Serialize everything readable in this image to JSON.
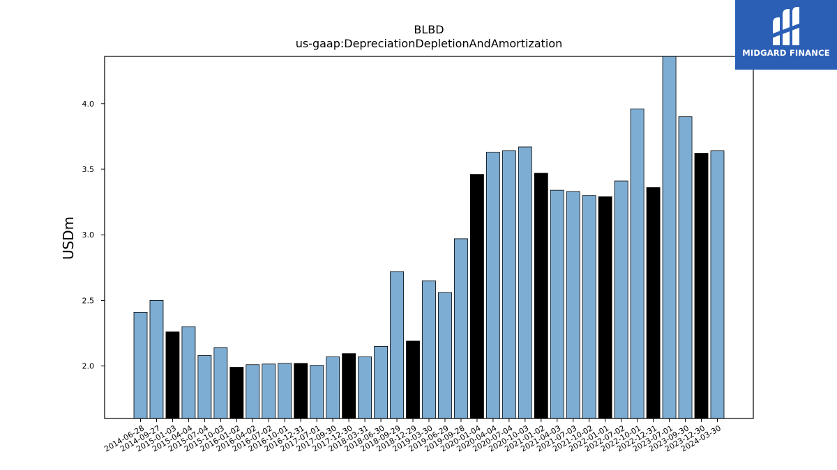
{
  "chart_data": {
    "type": "bar",
    "title": "BLBD",
    "subtitle": "us-gaap:DepreciationDepletionAndAmortization",
    "xlabel": "",
    "ylabel": "USDm",
    "ylim": [
      1.6,
      4.36
    ],
    "yticks": [
      "2.0",
      "2.5",
      "3.0",
      "3.5",
      "4.0"
    ],
    "grid": false,
    "colors": {
      "normal": "#7eadd3",
      "highlight": "#000000",
      "edge": "#000000"
    },
    "categories": [
      "2014-06-28",
      "2014-09-27",
      "2015-01-03",
      "2015-04-04",
      "2015-07-04",
      "2015-10-03",
      "2016-01-02",
      "2016-04-02",
      "2016-07-02",
      "2016-10-01",
      "2016-12-31",
      "2017-07-01",
      "2017-09-30",
      "2017-12-30",
      "2018-03-31",
      "2018-06-30",
      "2018-09-29",
      "2018-12-29",
      "2019-03-30",
      "2019-06-29",
      "2019-09-28",
      "2020-01-04",
      "2020-04-04",
      "2020-07-04",
      "2020-10-03",
      "2021-01-02",
      "2021-04-03",
      "2021-07-03",
      "2021-10-02",
      "2022-01-01",
      "2022-07-02",
      "2022-10-01",
      "2022-12-31",
      "2023-07-01",
      "2023-09-30",
      "2023-12-30",
      "2024-03-30"
    ],
    "values": [
      2.41,
      2.5,
      2.26,
      2.3,
      2.08,
      2.14,
      1.99,
      2.01,
      2.015,
      2.02,
      2.02,
      2.005,
      2.07,
      2.095,
      2.07,
      2.15,
      2.72,
      2.19,
      2.65,
      2.56,
      2.97,
      3.46,
      3.63,
      3.64,
      3.67,
      3.47,
      3.34,
      3.33,
      3.3,
      3.29,
      3.41,
      3.96,
      3.36,
      4.36,
      3.9,
      3.62,
      3.64
    ],
    "highlight": [
      false,
      false,
      true,
      false,
      false,
      false,
      true,
      false,
      false,
      false,
      true,
      false,
      false,
      true,
      false,
      false,
      false,
      true,
      false,
      false,
      false,
      true,
      false,
      false,
      false,
      true,
      false,
      false,
      false,
      true,
      false,
      false,
      true,
      false,
      false,
      true,
      false
    ]
  },
  "logo": {
    "text": "MIDGARD FINANCE",
    "color": "#2b5fb5"
  }
}
